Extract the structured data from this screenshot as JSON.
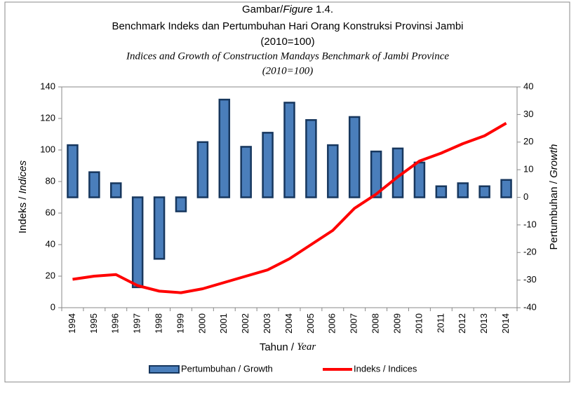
{
  "chart_data": {
    "type": "bar-line",
    "title": [
      "Gambar/",
      "Figure",
      " 1.4."
    ],
    "subtitle": "Benchmark Indeks dan Pertumbuhan Hari Orang Konstruksi Provinsi Jambi",
    "subtitle_base": "(2010=100)",
    "subtitle_en": "Indices and Growth of Construction Mandays Benchmark of Jambi Province",
    "subtitle_en_base": "(2010=100)",
    "xlabel": [
      "Tahun / ",
      "Year"
    ],
    "ylabel": [
      "Indeks / ",
      "Indices"
    ],
    "y2label": [
      "Pertumbuhan / ",
      "Growth"
    ],
    "categories": [
      "1994",
      "1995",
      "1996",
      "1997",
      "1998",
      "1999",
      "2000",
      "2001",
      "2002",
      "2003",
      "2004",
      "2005",
      "2006",
      "2007",
      "2008",
      "2009",
      "2010",
      "2011",
      "2012",
      "2013",
      "2014"
    ],
    "series": [
      {
        "name": "Pertumbuhan / Growth",
        "color": "#4a7ebb",
        "axis": "y2",
        "type": "bar",
        "values": [
          18.9,
          9.1,
          5.1,
          -32.6,
          -22.3,
          -5.1,
          20,
          35.4,
          18.3,
          23.4,
          34.3,
          28,
          18.9,
          29.1,
          16.6,
          17.7,
          12.6,
          4,
          5.1,
          4,
          6.3
        ]
      },
      {
        "name": "Indeks / Indices",
        "color": "#ff0000",
        "axis": "y",
        "type": "line",
        "values": [
          18,
          20,
          21,
          14,
          10.5,
          9.5,
          12,
          16,
          20,
          24,
          31,
          40,
          49,
          63,
          72,
          83,
          93,
          98,
          104,
          109,
          117
        ]
      }
    ],
    "ylim": [
      0,
      140
    ],
    "yticks": [
      0,
      20,
      40,
      60,
      80,
      100,
      120,
      140
    ],
    "y2lim": [
      -40,
      40
    ],
    "y2ticks": [
      -40,
      -30,
      -20,
      -10,
      0,
      10,
      20,
      30,
      40
    ],
    "grid": false,
    "legend": "bottom"
  }
}
